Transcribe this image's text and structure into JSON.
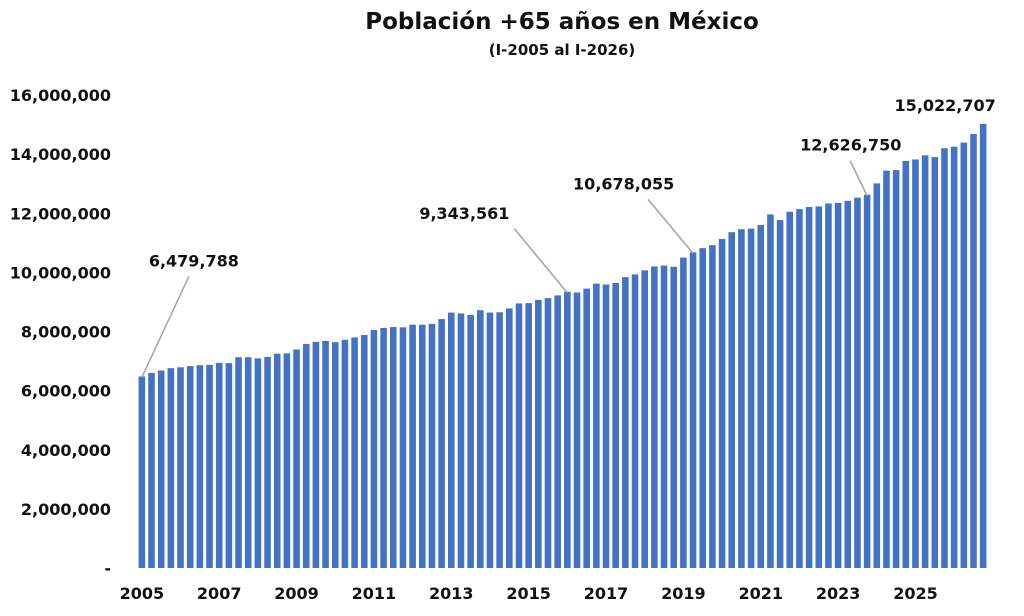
{
  "chart_data": {
    "type": "bar",
    "title": "Población +65 años en México",
    "subtitle": "(I-2005 al I-2026)",
    "xlabel": "",
    "ylabel": "",
    "ylim": [
      0,
      16000000
    ],
    "yticks": [
      {
        "value": 0,
        "label": "-"
      },
      {
        "value": 2000000,
        "label": "2,000,000"
      },
      {
        "value": 4000000,
        "label": "4,000,000"
      },
      {
        "value": 6000000,
        "label": "6,000,000"
      },
      {
        "value": 8000000,
        "label": "8,000,000"
      },
      {
        "value": 10000000,
        "label": "10,000,000"
      },
      {
        "value": 12000000,
        "label": "12,000,000"
      },
      {
        "value": 14000000,
        "label": "14,000,000"
      },
      {
        "value": 16000000,
        "label": "16,000,000"
      }
    ],
    "xticks": [
      "2005",
      "2007",
      "2009",
      "2011",
      "2013",
      "2015",
      "2017",
      "2019",
      "2021",
      "2023",
      "2025"
    ],
    "color": "#4472c4",
    "grid": false,
    "legend": "none",
    "series": [
      {
        "values": [
          6479788,
          6600000,
          6680000,
          6760000,
          6790000,
          6830000,
          6860000,
          6870000,
          6940000,
          6930000,
          7130000,
          7130000,
          7090000,
          7140000,
          7250000,
          7260000,
          7390000,
          7580000,
          7650000,
          7680000,
          7640000,
          7720000,
          7800000,
          7880000,
          8050000,
          8120000,
          8150000,
          8140000,
          8230000,
          8230000,
          8260000,
          8420000,
          8640000,
          8610000,
          8560000,
          8720000,
          8640000,
          8650000,
          8780000,
          8950000,
          8960000,
          9070000,
          9130000,
          9220000,
          9343561,
          9320000,
          9450000,
          9620000,
          9590000,
          9640000,
          9840000,
          9930000,
          10070000,
          10200000,
          10230000,
          10190000,
          10500000,
          10678055,
          10820000,
          10920000,
          11130000,
          11360000,
          11460000,
          11480000,
          11600000,
          11960000,
          11770000,
          12050000,
          12140000,
          12210000,
          12230000,
          12330000,
          12350000,
          12420000,
          12530000,
          12626750,
          13010000,
          13440000,
          13460000,
          13770000,
          13820000,
          13960000,
          13900000,
          14200000,
          14250000,
          14390000,
          14680000,
          15022707
        ]
      }
    ],
    "annotations": [
      {
        "index": 0,
        "label": "6,479,788"
      },
      {
        "index": 44,
        "label": "9,343,561"
      },
      {
        "index": 57,
        "label": "10,678,055"
      },
      {
        "index": 75,
        "label": "12,626,750"
      },
      {
        "index": 87,
        "label": "15,022,707"
      }
    ]
  }
}
